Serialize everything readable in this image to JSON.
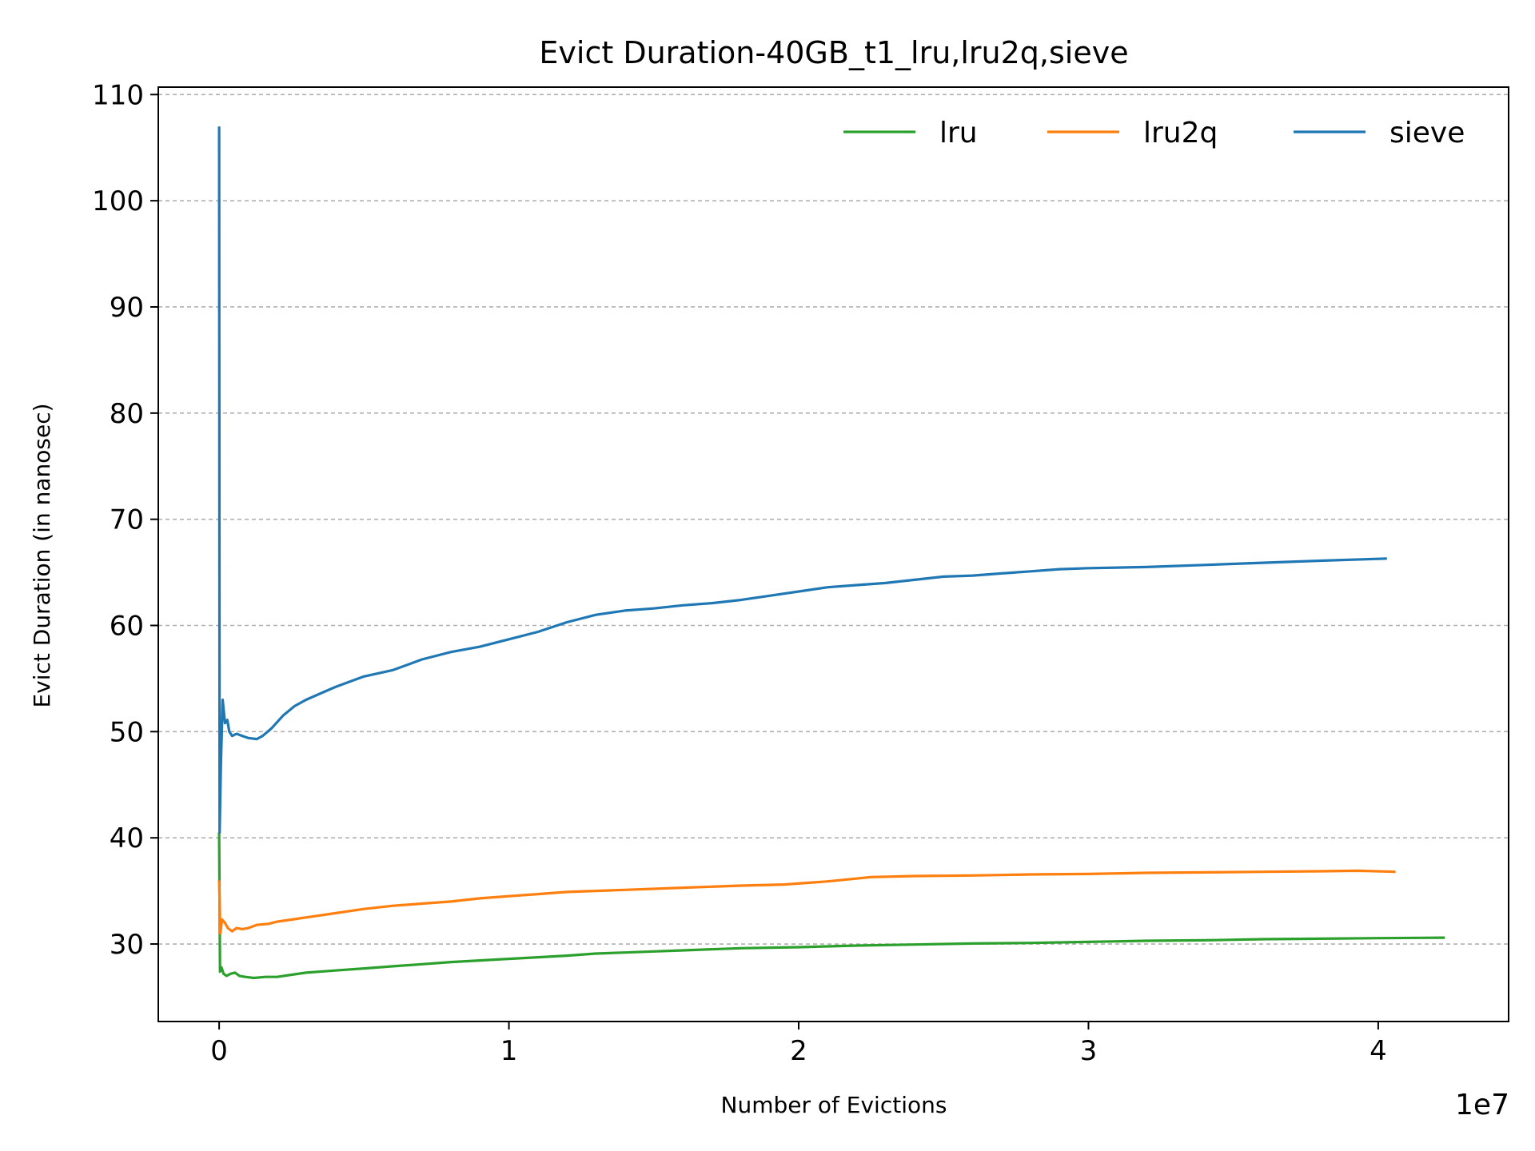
{
  "chart_data": {
    "type": "line",
    "title": "Evict Duration-40GB_t1_lru,lru2q,sieve",
    "xlabel": "Number of Evictions",
    "ylabel": "Evict Duration (in nanosec)",
    "x_offset_text": "1e7",
    "x_scale": 10000000,
    "xlim": [
      -2100000,
      44500000
    ],
    "ylim": [
      22.7,
      110.7
    ],
    "xticks": [
      0,
      10000000,
      20000000,
      30000000,
      40000000
    ],
    "xtick_labels": [
      "0",
      "1",
      "2",
      "3",
      "4"
    ],
    "yticks": [
      30,
      40,
      50,
      60,
      70,
      80,
      90,
      100,
      110
    ],
    "ytick_labels": [
      "30",
      "40",
      "50",
      "60",
      "70",
      "80",
      "90",
      "100",
      "110"
    ],
    "grid": "y-dashed",
    "legend_position": "top-right",
    "series": [
      {
        "name": "lru",
        "color": "#2ca02c",
        "points": [
          [
            0,
            40.5
          ],
          [
            30000,
            27.4
          ],
          [
            80000,
            27.8
          ],
          [
            150000,
            27.2
          ],
          [
            250000,
            27.0
          ],
          [
            400000,
            27.2
          ],
          [
            550000,
            27.3
          ],
          [
            700000,
            27.0
          ],
          [
            900000,
            26.9
          ],
          [
            1200000,
            26.8
          ],
          [
            1600000,
            26.9
          ],
          [
            2000000,
            26.9
          ],
          [
            2500000,
            27.1
          ],
          [
            3000000,
            27.3
          ],
          [
            4000000,
            27.5
          ],
          [
            5000000,
            27.7
          ],
          [
            6000000,
            27.9
          ],
          [
            7000000,
            28.1
          ],
          [
            8000000,
            28.3
          ],
          [
            9000000,
            28.45
          ],
          [
            10000000,
            28.6
          ],
          [
            11000000,
            28.75
          ],
          [
            12000000,
            28.9
          ],
          [
            13000000,
            29.1
          ],
          [
            14000000,
            29.2
          ],
          [
            16000000,
            29.4
          ],
          [
            18000000,
            29.6
          ],
          [
            20000000,
            29.7
          ],
          [
            22000000,
            29.85
          ],
          [
            24000000,
            29.95
          ],
          [
            26000000,
            30.05
          ],
          [
            28000000,
            30.1
          ],
          [
            30000000,
            30.2
          ],
          [
            32000000,
            30.3
          ],
          [
            34000000,
            30.35
          ],
          [
            36000000,
            30.45
          ],
          [
            38000000,
            30.5
          ],
          [
            40000000,
            30.55
          ],
          [
            42300000,
            30.6
          ]
        ]
      },
      {
        "name": "lru2q",
        "color": "#ff7f0e",
        "points": [
          [
            0,
            36.0
          ],
          [
            40000,
            31.0
          ],
          [
            100000,
            32.3
          ],
          [
            200000,
            32.0
          ],
          [
            300000,
            31.5
          ],
          [
            450000,
            31.2
          ],
          [
            600000,
            31.5
          ],
          [
            800000,
            31.4
          ],
          [
            1000000,
            31.5
          ],
          [
            1300000,
            31.8
          ],
          [
            1700000,
            31.9
          ],
          [
            2000000,
            32.1
          ],
          [
            2500000,
            32.3
          ],
          [
            3000000,
            32.5
          ],
          [
            4000000,
            32.9
          ],
          [
            5000000,
            33.3
          ],
          [
            6000000,
            33.6
          ],
          [
            7000000,
            33.8
          ],
          [
            8000000,
            34.0
          ],
          [
            9000000,
            34.3
          ],
          [
            10000000,
            34.5
          ],
          [
            11000000,
            34.7
          ],
          [
            12000000,
            34.9
          ],
          [
            13000000,
            35.0
          ],
          [
            14000000,
            35.1
          ],
          [
            16000000,
            35.3
          ],
          [
            18000000,
            35.5
          ],
          [
            19500000,
            35.6
          ],
          [
            21000000,
            35.9
          ],
          [
            22500000,
            36.3
          ],
          [
            24000000,
            36.4
          ],
          [
            26000000,
            36.45
          ],
          [
            28000000,
            36.55
          ],
          [
            30000000,
            36.6
          ],
          [
            32000000,
            36.7
          ],
          [
            34000000,
            36.75
          ],
          [
            36000000,
            36.8
          ],
          [
            38000000,
            36.85
          ],
          [
            39300000,
            36.9
          ],
          [
            40600000,
            36.8
          ]
        ]
      },
      {
        "name": "sieve",
        "color": "#1f77b4",
        "points": [
          [
            0,
            107.0
          ],
          [
            15000,
            40.5
          ],
          [
            60000,
            47.0
          ],
          [
            120000,
            53.0
          ],
          [
            200000,
            50.8
          ],
          [
            280000,
            51.1
          ],
          [
            350000,
            50.0
          ],
          [
            450000,
            49.6
          ],
          [
            600000,
            49.8
          ],
          [
            800000,
            49.6
          ],
          [
            1000000,
            49.4
          ],
          [
            1300000,
            49.3
          ],
          [
            1500000,
            49.6
          ],
          [
            1800000,
            50.3
          ],
          [
            2200000,
            51.5
          ],
          [
            2600000,
            52.4
          ],
          [
            3000000,
            53.0
          ],
          [
            3500000,
            53.6
          ],
          [
            4000000,
            54.2
          ],
          [
            4500000,
            54.7
          ],
          [
            5000000,
            55.2
          ],
          [
            6000000,
            55.8
          ],
          [
            7000000,
            56.8
          ],
          [
            8000000,
            57.5
          ],
          [
            9000000,
            58.0
          ],
          [
            10000000,
            58.7
          ],
          [
            11000000,
            59.4
          ],
          [
            12000000,
            60.3
          ],
          [
            13000000,
            61.0
          ],
          [
            14000000,
            61.4
          ],
          [
            15000000,
            61.6
          ],
          [
            16000000,
            61.9
          ],
          [
            17000000,
            62.1
          ],
          [
            18000000,
            62.4
          ],
          [
            19000000,
            62.8
          ],
          [
            20000000,
            63.2
          ],
          [
            21000000,
            63.6
          ],
          [
            22000000,
            63.8
          ],
          [
            23000000,
            64.0
          ],
          [
            24000000,
            64.3
          ],
          [
            25000000,
            64.6
          ],
          [
            26000000,
            64.7
          ],
          [
            27000000,
            64.9
          ],
          [
            28000000,
            65.1
          ],
          [
            29000000,
            65.3
          ],
          [
            30000000,
            65.4
          ],
          [
            32000000,
            65.5
          ],
          [
            34000000,
            65.7
          ],
          [
            36000000,
            65.9
          ],
          [
            38000000,
            66.1
          ],
          [
            40300000,
            66.3
          ]
        ]
      }
    ]
  }
}
